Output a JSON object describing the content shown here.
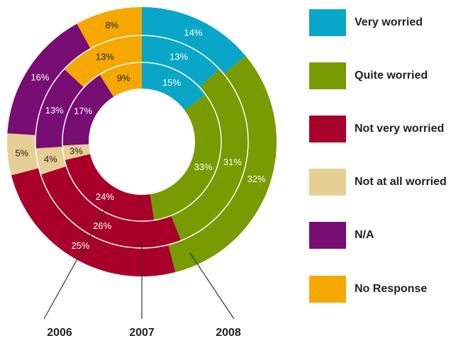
{
  "chart_data": {
    "type": "pie",
    "subtype": "multi-level donut",
    "categories": [
      "Very worried",
      "Quite worried",
      "Not very worried",
      "Not at all worried",
      "N/A",
      "No Response"
    ],
    "colors": [
      "#0aa6c7",
      "#779b00",
      "#a8002a",
      "#e5cf94",
      "#780d73",
      "#f6a800"
    ],
    "series": [
      {
        "name": "2006",
        "values": [
          15,
          33,
          24,
          3,
          17,
          9
        ]
      },
      {
        "name": "2007",
        "values": [
          13,
          31,
          26,
          4,
          13,
          13
        ]
      },
      {
        "name": "2008",
        "values": [
          14,
          32,
          25,
          5,
          16,
          8
        ]
      }
    ],
    "legend": {
      "placement": "right",
      "entries": [
        "Very worried",
        "Quite worried",
        "Not very worried",
        "Not at all worried",
        "N/A",
        "No Response"
      ]
    },
    "value_suffix": "%"
  }
}
